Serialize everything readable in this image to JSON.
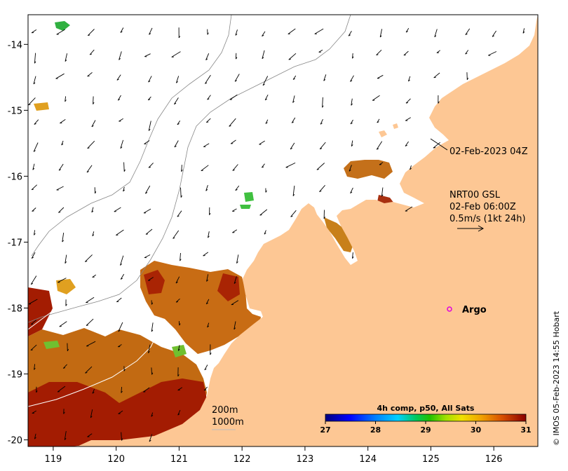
{
  "map": {
    "x_ticks": [
      "119",
      "120",
      "121",
      "122",
      "123",
      "124",
      "125",
      "126"
    ],
    "y_ticks": [
      "-14",
      "-15",
      "-16",
      "-17",
      "-18",
      "-19",
      "-20"
    ],
    "lon_range": [
      118.6,
      126.7
    ],
    "lat_range": [
      -20.1,
      -13.55
    ]
  },
  "annotations": {
    "timestamp": "02-Feb-2023 04Z",
    "current_title": "NRT00 GSL",
    "current_time": "02-Feb 06:00Z",
    "current_scale": "0.5m/s (1kt 24h)",
    "argo_label": "Argo",
    "depth_200": "200m",
    "depth_1000": "1000m",
    "credit": "© IMOS 05-Feb-2023 14:55 Hobart"
  },
  "colorbar": {
    "title": "4h comp, p50, All Sats",
    "ticks": [
      "27",
      "28",
      "29",
      "30",
      "31"
    ],
    "range": [
      27,
      31
    ]
  },
  "colors": {
    "land": "#fdc794",
    "argo": "#e000e0",
    "sst_hot": "#a01a00",
    "sst_warm": "#d87010"
  }
}
